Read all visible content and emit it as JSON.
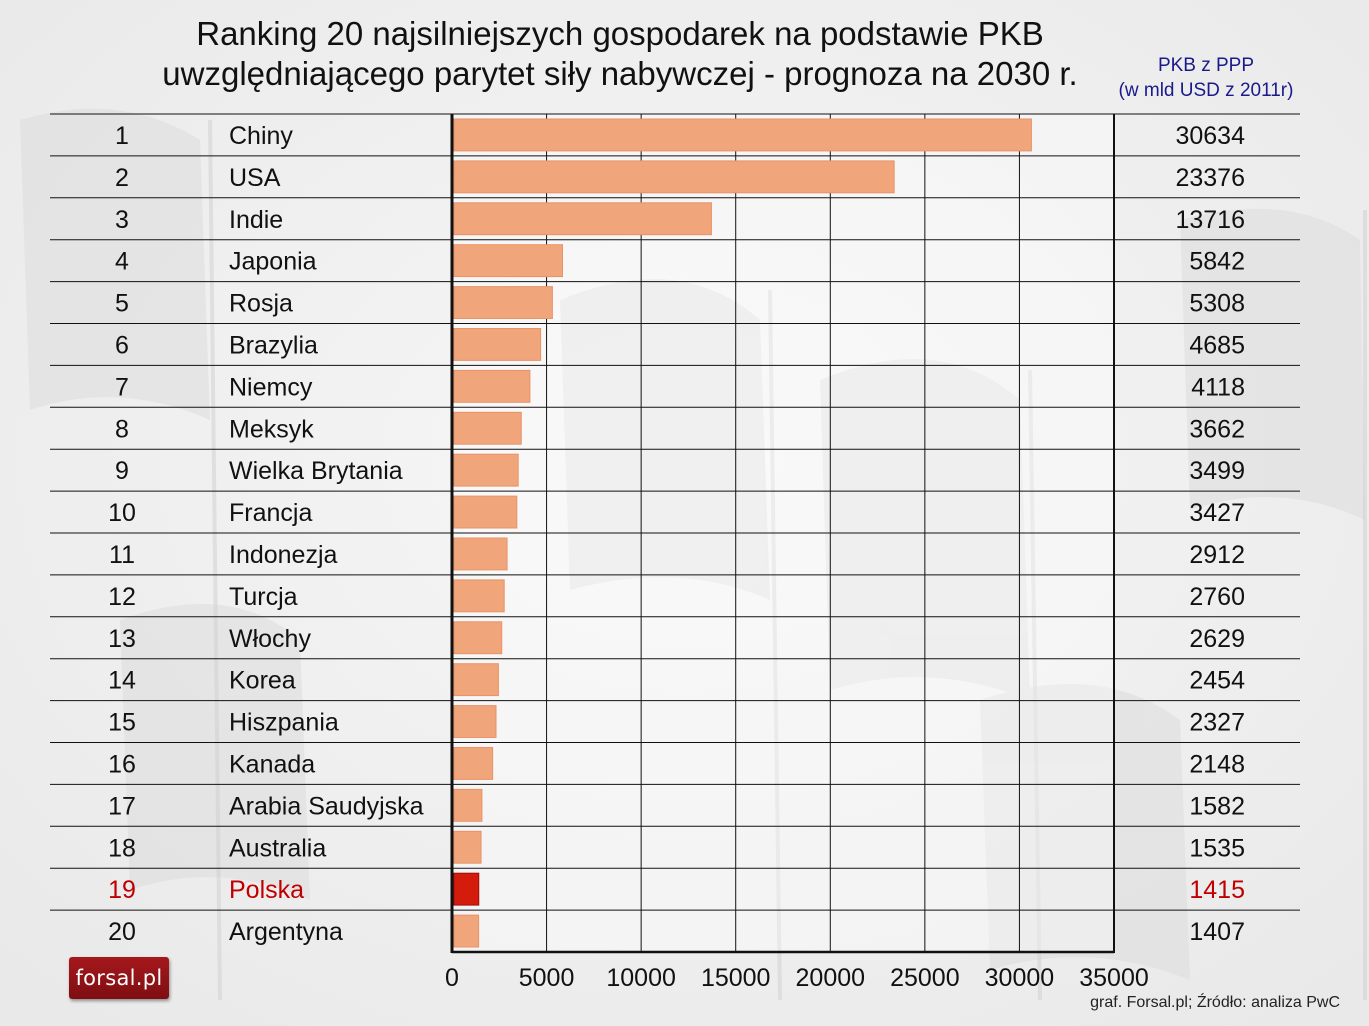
{
  "header": {
    "title_line1": "Ranking 20 najsilniejszych gospodarek na podstawie PKB",
    "title_line2": "uwzględniającego parytet siły nabywczej - prognoza na 2030 r.",
    "unit_line1": "PKB z PPP",
    "unit_line2": "(w mld USD z 2011r)"
  },
  "footer": {
    "logo_text": "forsal.pl",
    "source": "graf. Forsal.pl; Źródło: analiza PwC"
  },
  "colors": {
    "bar": "#f0a57a",
    "highlight_bar": "#d41c0c",
    "highlight_text": "#c00000",
    "grid": "#111111"
  },
  "chart_data": {
    "type": "bar",
    "orientation": "horizontal",
    "title": "Ranking 20 najsilniejszych gospodarek na podstawie PKB uwzględniającego parytet siły nabywczej - prognoza na 2030 r.",
    "value_label": "PKB z PPP (w mld USD z 2011r)",
    "xlim": [
      0,
      35000
    ],
    "x_ticks": [
      "0",
      "5000",
      "10000",
      "15000",
      "20000",
      "25000",
      "30000",
      "35000"
    ],
    "grid": true,
    "highlight": "Polska",
    "ranks": [
      "1",
      "2",
      "3",
      "4",
      "5",
      "6",
      "7",
      "8",
      "9",
      "10",
      "11",
      "12",
      "13",
      "14",
      "15",
      "16",
      "17",
      "18",
      "19",
      "20"
    ],
    "categories": [
      "Chiny",
      "USA",
      "Indie",
      "Japonia",
      "Rosja",
      "Brazylia",
      "Niemcy",
      "Meksyk",
      "Wielka Brytania",
      "Francja",
      "Indonezja",
      "Turcja",
      "Włochy",
      "Korea",
      "Hiszpania",
      "Kanada",
      "Arabia Saudyjska",
      "Australia",
      "Polska",
      "Argentyna"
    ],
    "values": [
      30634,
      23376,
      13716,
      5842,
      5308,
      4685,
      4118,
      3662,
      3499,
      3427,
      2912,
      2760,
      2629,
      2454,
      2327,
      2148,
      1582,
      1535,
      1415,
      1407
    ]
  }
}
